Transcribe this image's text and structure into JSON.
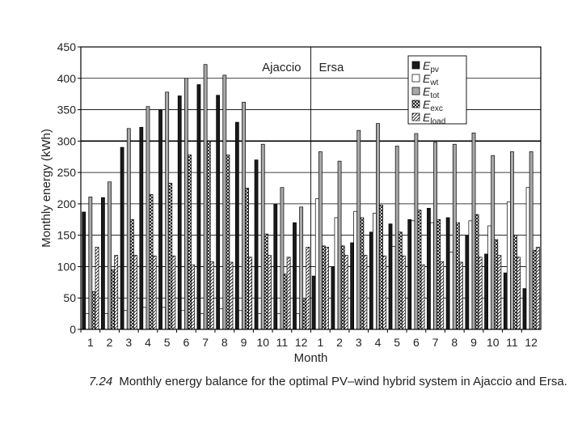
{
  "caption": {
    "number": "7.24",
    "text": "Monthly energy balance for the optimal PV–wind hybrid system in Ajaccio and Ersa."
  },
  "chart_data": {
    "type": "bar",
    "ylabel": "Monthly energy (kWh)",
    "xlabel": "Month",
    "ylim": [
      0,
      450
    ],
    "yticks": [
      0,
      50,
      100,
      150,
      200,
      250,
      300,
      350,
      400,
      450
    ],
    "grid": "horizontal",
    "legend_position": "top-right",
    "groups": [
      {
        "name": "Ajaccio",
        "categories": [
          "1",
          "2",
          "3",
          "4",
          "5",
          "6",
          "7",
          "8",
          "9",
          "10",
          "11",
          "12"
        ]
      },
      {
        "name": "Ersa",
        "categories": [
          "1",
          "2",
          "3",
          "4",
          "5",
          "6",
          "7",
          "8",
          "9",
          "10",
          "11",
          "12"
        ]
      }
    ],
    "series": [
      {
        "name": "Epv",
        "label_main": "E",
        "label_sub": "pv",
        "style": "black",
        "values": [
          187,
          210,
          290,
          322,
          350,
          372,
          390,
          373,
          330,
          270,
          200,
          170,
          85,
          100,
          138,
          155,
          168,
          175,
          193,
          178,
          150,
          120,
          90,
          65
        ]
      },
      {
        "name": "Ewt",
        "label_main": "E",
        "label_sub": "wt",
        "style": "white",
        "values": [
          25,
          25,
          30,
          35,
          35,
          30,
          25,
          33,
          30,
          25,
          25,
          25,
          208,
          178,
          188,
          185,
          132,
          173,
          170,
          123,
          173,
          165,
          203,
          226
        ]
      },
      {
        "name": "Etot",
        "label_main": "E",
        "label_sub": "tot",
        "style": "gray",
        "values": [
          211,
          235,
          320,
          355,
          378,
          400,
          422,
          405,
          362,
          295,
          226,
          195,
          283,
          268,
          317,
          328,
          292,
          312,
          298,
          295,
          313,
          277,
          283,
          283
        ]
      },
      {
        "name": "Eexc",
        "label_main": "E",
        "label_sub": "exc",
        "style": "crosshatch",
        "values": [
          60,
          95,
          175,
          215,
          233,
          278,
          300,
          278,
          225,
          152,
          88,
          48,
          133,
          133,
          178,
          198,
          155,
          190,
          175,
          170,
          183,
          143,
          150,
          126
        ]
      },
      {
        "name": "Eload",
        "label_main": "E",
        "label_sub": "load",
        "style": "hatch",
        "values": [
          131,
          118,
          118,
          117,
          117,
          103,
          108,
          107,
          115,
          118,
          115,
          131,
          131,
          118,
          118,
          117,
          117,
          103,
          108,
          107,
          115,
          118,
          115,
          131
        ]
      }
    ]
  }
}
